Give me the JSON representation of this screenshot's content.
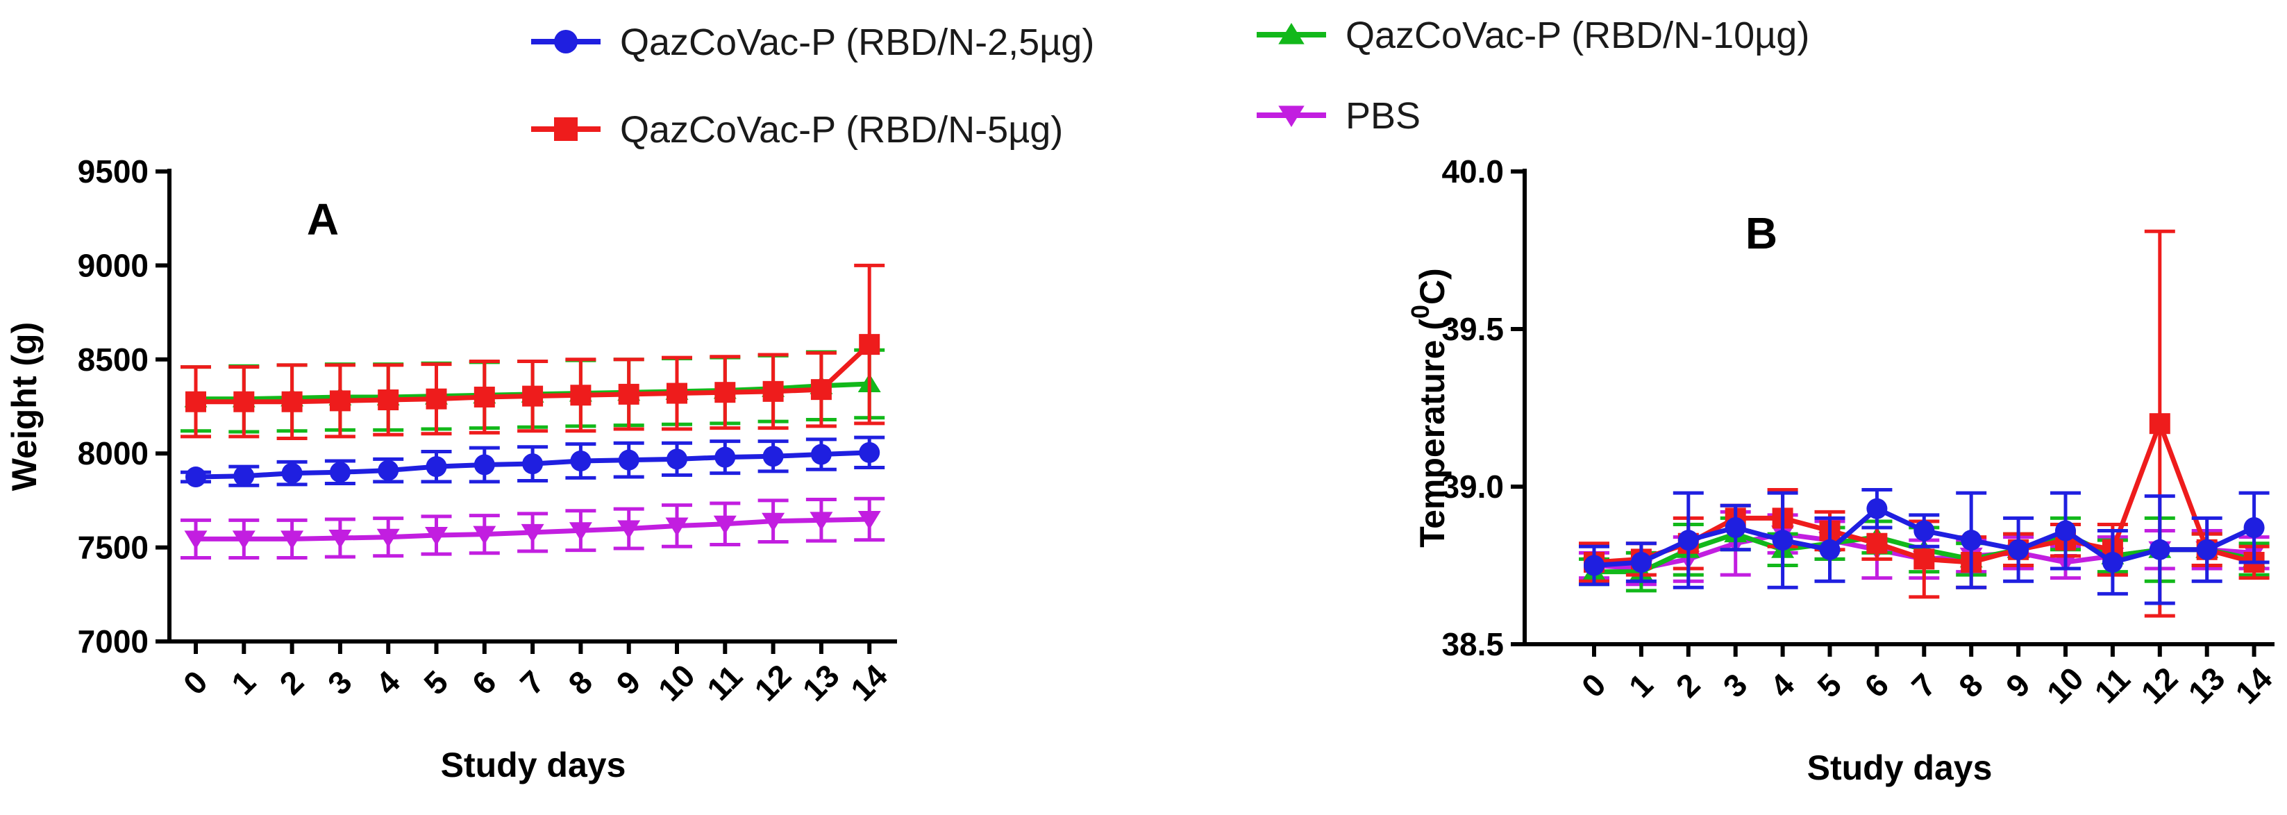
{
  "legend": [
    {
      "label": "QazCoVac-P (RBD/N-2,5µg)",
      "color": "#1f1fe0",
      "marker": "circle"
    },
    {
      "label": "QazCoVac-P (RBD/N-10µg)",
      "color": "#12b81a",
      "marker": "triangle-up"
    },
    {
      "label": "QazCoVac-P (RBD/N-5µg)",
      "color": "#ee1c1c",
      "marker": "square"
    },
    {
      "label": "PBS",
      "color": "#c21ee0",
      "marker": "triangle-down"
    }
  ],
  "chart_data": [
    {
      "type": "line",
      "panel": "A",
      "xlabel": "Study days",
      "ylabel": "Weight (g)",
      "ylim": [
        7000,
        9500
      ],
      "yticks": [
        "7000",
        "7500",
        "8000",
        "8500",
        "9000",
        "9500"
      ],
      "categories": [
        "0",
        "1",
        "2",
        "3",
        "4",
        "5",
        "6",
        "7",
        "8",
        "9",
        "10",
        "11",
        "12",
        "13",
        "14"
      ],
      "series": [
        {
          "name": "PBS",
          "color": "#c21ee0",
          "marker": "triangle-down",
          "values": [
            7545,
            7545,
            7545,
            7550,
            7555,
            7565,
            7570,
            7580,
            7590,
            7600,
            7615,
            7625,
            7640,
            7645,
            7650
          ],
          "errors": [
            100,
            100,
            100,
            100,
            100,
            100,
            100,
            100,
            105,
            105,
            110,
            110,
            110,
            110,
            110
          ]
        },
        {
          "name": "QazCoVac-P (RBD/N-10µg)",
          "color": "#12b81a",
          "marker": "triangle-up",
          "values": [
            8290,
            8290,
            8295,
            8300,
            8300,
            8305,
            8310,
            8315,
            8320,
            8325,
            8330,
            8335,
            8345,
            8360,
            8370
          ],
          "errors": [
            170,
            175,
            175,
            175,
            175,
            175,
            175,
            175,
            175,
            175,
            175,
            175,
            175,
            180,
            180
          ]
        },
        {
          "name": "QazCoVac-P (RBD/N-2,5µg)",
          "color": "#1f1fe0",
          "marker": "circle",
          "values": [
            7875,
            7880,
            7895,
            7900,
            7910,
            7930,
            7940,
            7945,
            7960,
            7965,
            7970,
            7980,
            7985,
            7995,
            8005
          ],
          "errors": [
            25,
            50,
            60,
            60,
            60,
            80,
            90,
            90,
            90,
            90,
            85,
            85,
            80,
            80,
            80
          ]
        },
        {
          "name": "QazCoVac-P (RBD/N-5µg)",
          "color": "#ee1c1c",
          "marker": "square",
          "values": [
            8275,
            8275,
            8275,
            8280,
            8285,
            8290,
            8300,
            8305,
            8310,
            8315,
            8320,
            8325,
            8330,
            8340,
            8580
          ],
          "errors": [
            185,
            185,
            195,
            190,
            185,
            185,
            190,
            185,
            190,
            185,
            190,
            190,
            195,
            195,
            420
          ]
        }
      ]
    },
    {
      "type": "line",
      "panel": "B",
      "xlabel": "Study days",
      "ylabel_main": "Temperature (",
      "ylabel_sup": "0",
      "ylabel_unit": "C)",
      "ylim": [
        38.5,
        40.0
      ],
      "yticks": [
        "38.5",
        "39.0",
        "39.5",
        "40.0"
      ],
      "categories": [
        "0",
        "1",
        "2",
        "3",
        "4",
        "5",
        "6",
        "7",
        "8",
        "9",
        "10",
        "11",
        "12",
        "13",
        "14"
      ],
      "series": [
        {
          "name": "PBS",
          "color": "#c21ee0",
          "marker": "triangle-down",
          "values": [
            38.75,
            38.74,
            38.77,
            38.82,
            38.85,
            38.83,
            38.8,
            38.77,
            38.78,
            38.79,
            38.76,
            38.78,
            38.8,
            38.8,
            38.79
          ],
          "errors": [
            0.04,
            0.05,
            0.07,
            0.1,
            0.06,
            0.06,
            0.09,
            0.06,
            0.05,
            0.05,
            0.05,
            0.06,
            0.06,
            0.06,
            0.05
          ]
        },
        {
          "name": "QazCoVac-P (RBD/N-10µg)",
          "color": "#12b81a",
          "marker": "triangle-up",
          "values": [
            38.73,
            38.73,
            38.8,
            38.85,
            38.8,
            38.82,
            38.84,
            38.8,
            38.77,
            38.8,
            38.85,
            38.78,
            38.8,
            38.8,
            38.77
          ],
          "errors": [
            0.04,
            0.06,
            0.08,
            0.05,
            0.05,
            0.05,
            0.05,
            0.07,
            0.05,
            0.05,
            0.05,
            0.05,
            0.1,
            0.05,
            0.05
          ]
        },
        {
          "name": "QazCoVac-P (RBD/N-5µg)",
          "color": "#ee1c1c",
          "marker": "square",
          "values": [
            38.76,
            38.77,
            38.82,
            38.9,
            38.9,
            38.86,
            38.82,
            38.77,
            38.76,
            38.8,
            38.83,
            38.8,
            39.2,
            38.8,
            38.76
          ],
          "errors": [
            0.06,
            0.05,
            0.08,
            0.04,
            0.09,
            0.06,
            0.05,
            0.12,
            0.08,
            0.05,
            0.05,
            0.08,
            0.61,
            0.05,
            0.05
          ]
        },
        {
          "name": "QazCoVac-P (RBD/N-2,5µg)",
          "color": "#1f1fe0",
          "marker": "circle",
          "values": [
            38.75,
            38.76,
            38.83,
            38.87,
            38.83,
            38.8,
            38.93,
            38.86,
            38.83,
            38.8,
            38.86,
            38.76,
            38.8,
            38.8,
            38.87
          ],
          "errors": [
            0.06,
            0.06,
            0.15,
            0.07,
            0.15,
            0.1,
            0.06,
            0.05,
            0.15,
            0.1,
            0.12,
            0.1,
            0.17,
            0.1,
            0.11
          ]
        }
      ]
    }
  ]
}
